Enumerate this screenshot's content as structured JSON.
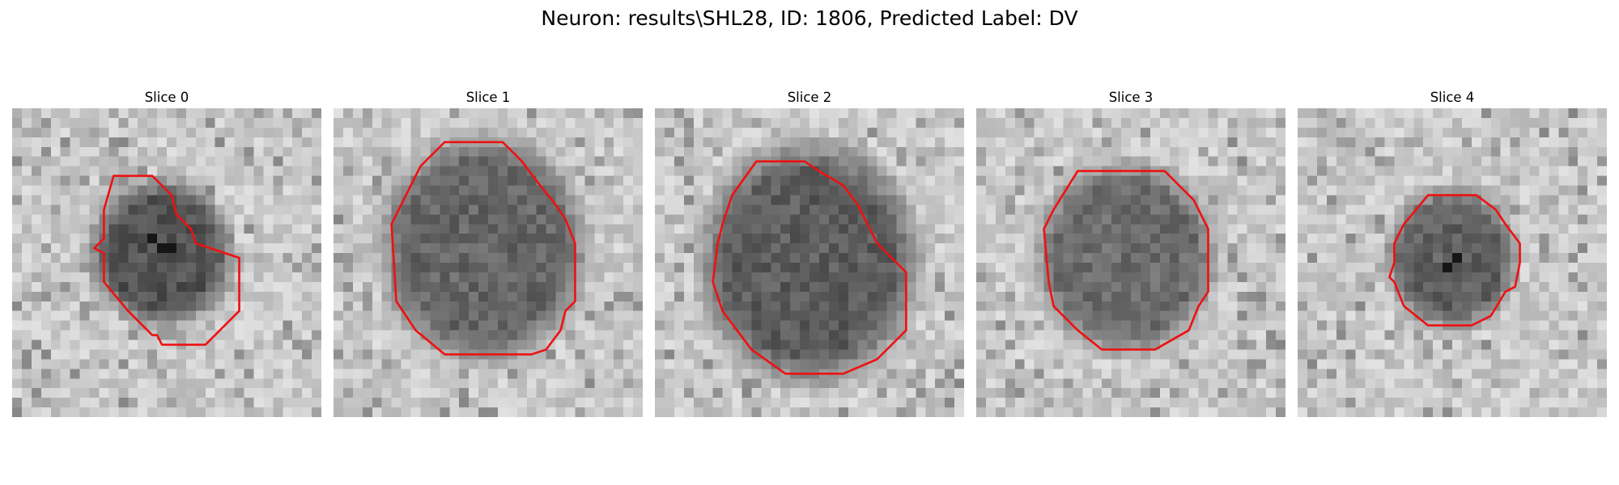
{
  "figure": {
    "suptitle": "Neuron: results\\SHL28, ID: 1806, Predicted Label: DV"
  },
  "panels": [
    {
      "title": "Slice 0"
    },
    {
      "title": "Slice 1"
    },
    {
      "title": "Slice 2"
    },
    {
      "title": "Slice 3"
    },
    {
      "title": "Slice 4"
    }
  ],
  "colors": {
    "contour": "#ee1111",
    "background": "#ffffff"
  },
  "image": {
    "colormap": "grayscale",
    "grid_cells": 32,
    "overlay": "red-polygon-contour"
  }
}
